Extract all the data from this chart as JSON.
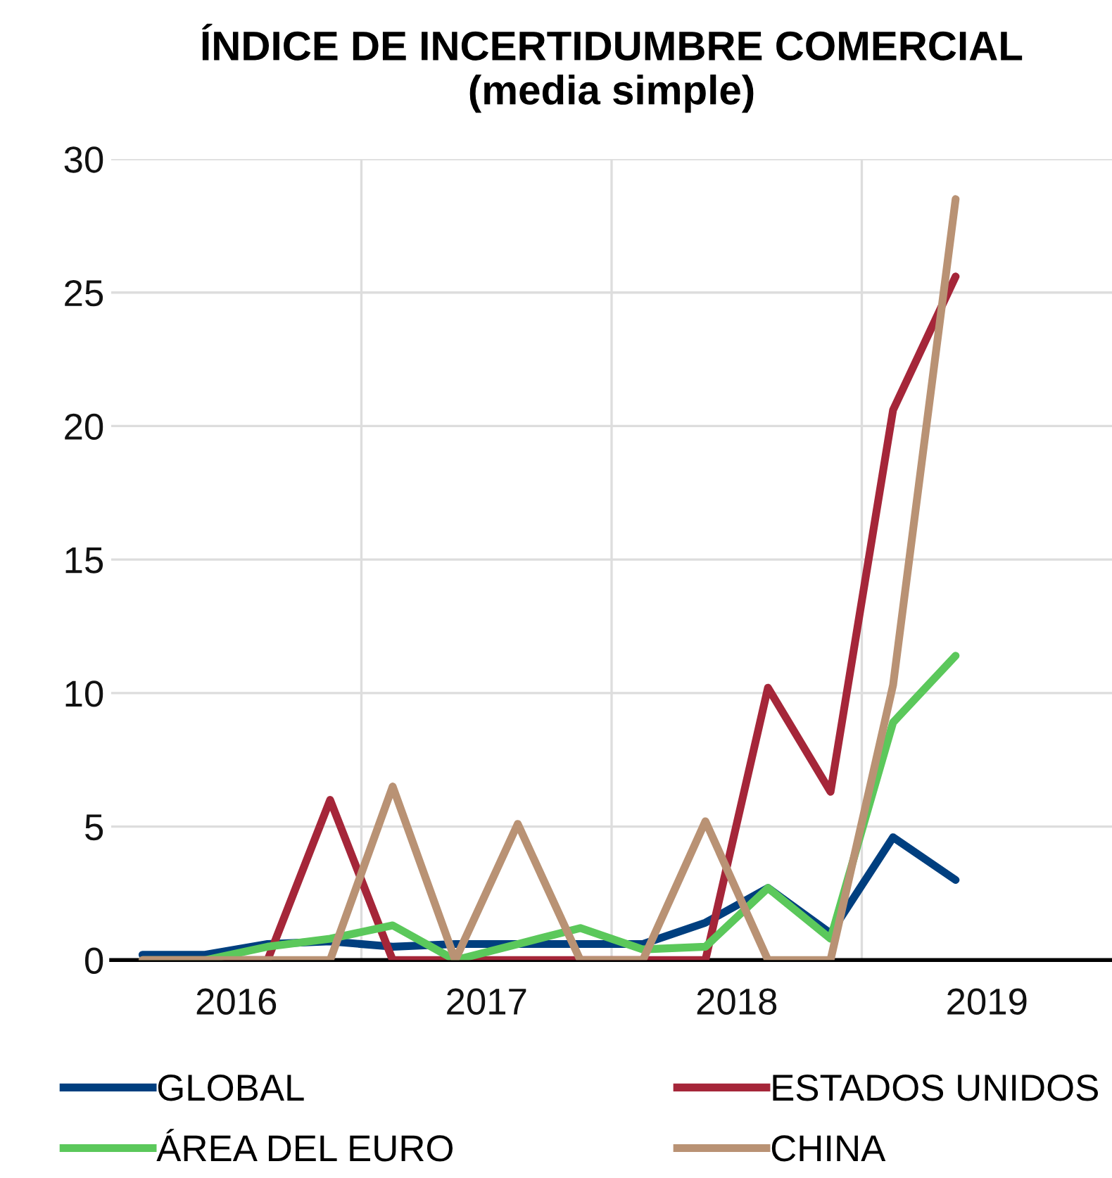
{
  "chart_data": {
    "type": "line",
    "title": "ÍNDICE DE INCERTIDUMBRE COMERCIAL\n(media simple)",
    "x": [
      2016.125,
      2016.375,
      2016.625,
      2016.875,
      2017.125,
      2017.375,
      2017.625,
      2017.875,
      2018.125,
      2018.375,
      2018.625,
      2018.875,
      2019.125,
      2019.375
    ],
    "series": [
      {
        "name": "GLOBAL",
        "color": "#003f7f",
        "values": [
          0.2,
          0.2,
          0.6,
          0.7,
          0.5,
          0.6,
          0.6,
          0.6,
          0.6,
          1.4,
          2.7,
          1.0,
          4.6,
          3.0
        ]
      },
      {
        "name": "ESTADOS UNIDOS",
        "color": "#a52639",
        "values": [
          0,
          0,
          0,
          6.0,
          0,
          0,
          0,
          0,
          0,
          0,
          10.2,
          6.3,
          20.6,
          25.6
        ]
      },
      {
        "name": "ÁREA DEL EURO",
        "color": "#5bc85b",
        "values": [
          0,
          0,
          0.5,
          0.8,
          1.3,
          0,
          0.6,
          1.2,
          0.4,
          0.5,
          2.7,
          0.8,
          8.9,
          11.4
        ]
      },
      {
        "name": "CHINA",
        "color": "#b99274",
        "values": [
          0,
          0,
          0,
          0,
          6.5,
          0,
          5.1,
          0,
          0,
          5.2,
          0,
          0,
          10.3,
          28.5
        ]
      }
    ],
    "xlim": [
      2016,
      2020
    ],
    "xticks": [
      {
        "value": 2017,
        "label": null
      },
      {
        "value": 2018,
        "label": null
      },
      {
        "value": 2019,
        "label": null
      },
      {
        "value": 2016.5,
        "label": "2016"
      },
      {
        "value": 2017.5,
        "label": "2017"
      },
      {
        "value": 2018.5,
        "label": "2018"
      },
      {
        "value": 2019.5,
        "label": "2019"
      }
    ],
    "ylim": [
      0,
      30
    ],
    "yticks": [
      0,
      5,
      10,
      15,
      20,
      25,
      30
    ],
    "grid": true,
    "legend": "bottom",
    "line_style": "solid",
    "marker": "none"
  }
}
